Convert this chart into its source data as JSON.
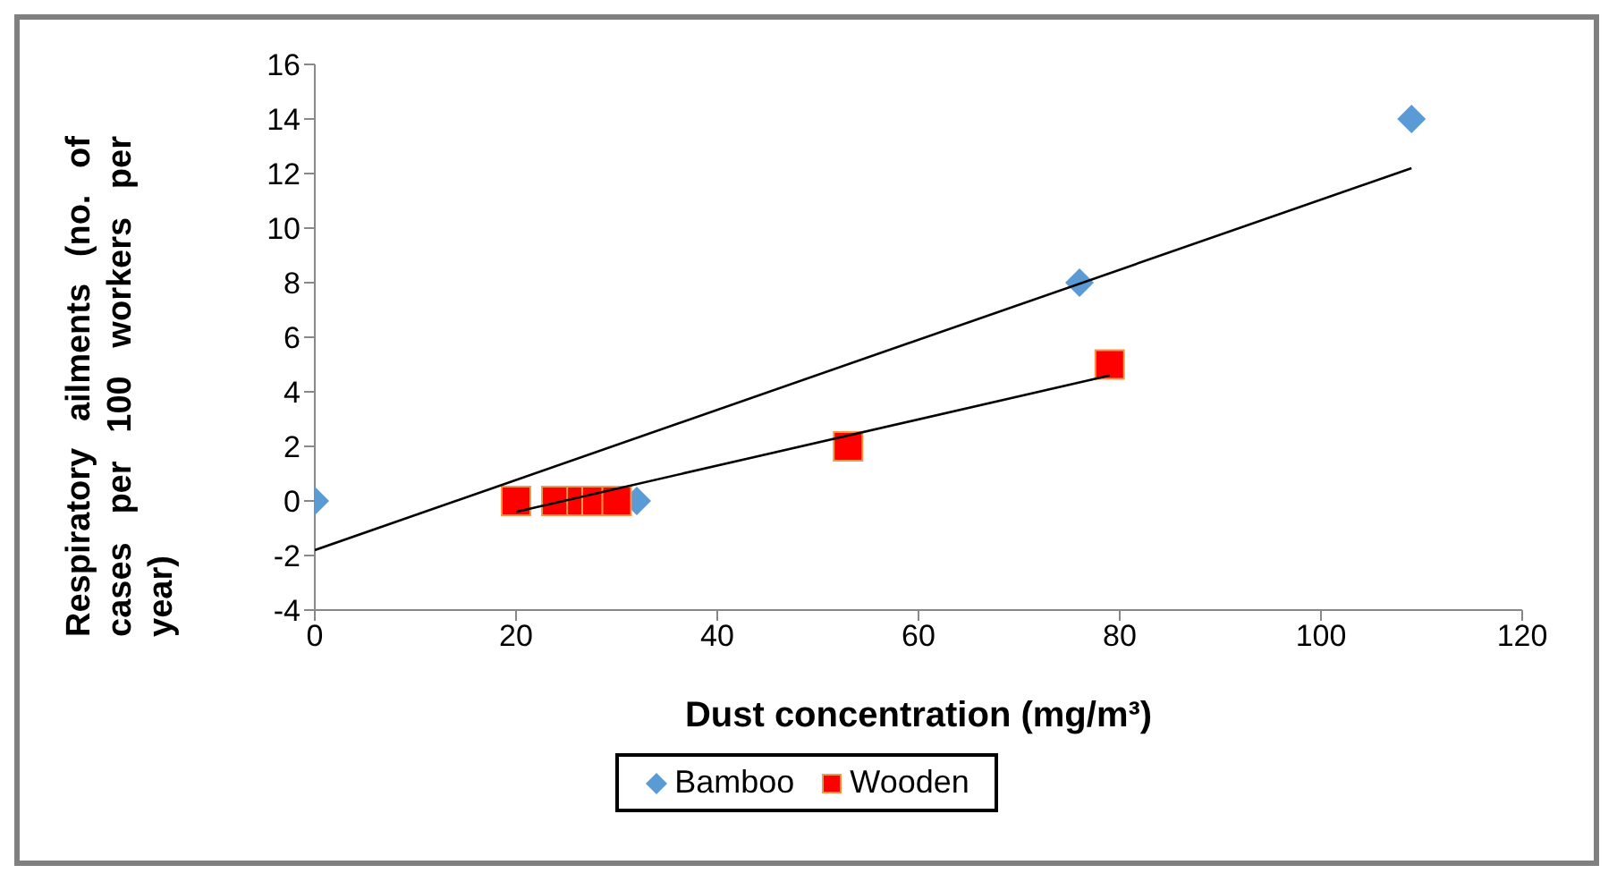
{
  "chart_data": {
    "type": "scatter",
    "xlabel": "Dust concentration (mg/m³)",
    "ylabel": "Respiratory ailments (no. of cases per 100 workers per year)",
    "xlim": [
      0,
      120
    ],
    "xticks": [
      0,
      20,
      40,
      60,
      80,
      100,
      120
    ],
    "ylim": [
      -4,
      16
    ],
    "yticks": [
      -4,
      -2,
      0,
      2,
      4,
      6,
      8,
      10,
      12,
      14,
      16
    ],
    "grid": false,
    "legend": "bottom",
    "series": [
      {
        "name": "Bamboo",
        "color": "#5b9bd5",
        "marker": "diamond",
        "x": [
          0,
          32,
          76,
          109
        ],
        "values": [
          0,
          0,
          8,
          14
        ]
      },
      {
        "name": "Wooden",
        "color": "#ff0000",
        "marker": "square",
        "x": [
          20,
          24,
          26.5,
          28,
          30,
          53,
          79
        ],
        "values": [
          0,
          0,
          0,
          0,
          0,
          2,
          5
        ]
      },
      {
        "type": "line",
        "color": "#000000",
        "marker": "none",
        "x": [
          0,
          109
        ],
        "values": [
          -1.8,
          12.2
        ]
      },
      {
        "type": "line",
        "color": "#000000",
        "marker": "none",
        "x": [
          20,
          79
        ],
        "values": [
          -0.4,
          4.6
        ]
      }
    ]
  }
}
